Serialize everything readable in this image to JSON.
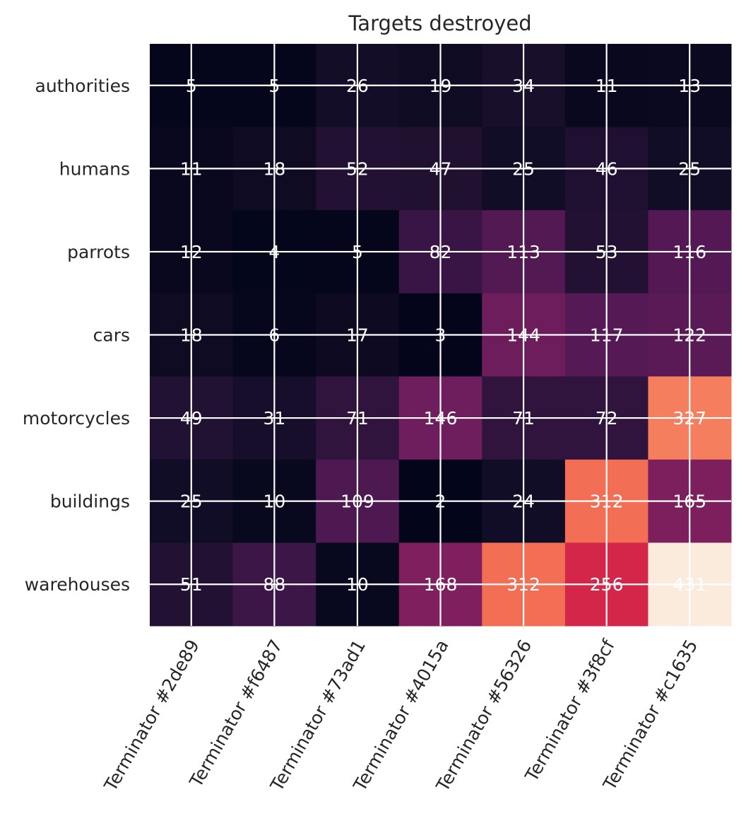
{
  "chart_data": {
    "type": "heatmap",
    "title": "Targets destroyed",
    "x_categories": [
      "Terminator #2de89",
      "Terminator #f6487",
      "Terminator #73ad1",
      "Terminator #4015a",
      "Terminator #56326",
      "Terminator #3f8cf",
      "Terminator #c1635"
    ],
    "y_categories": [
      "authorities",
      "humans",
      "parrots",
      "cars",
      "motorcycles",
      "buildings",
      "warehouses"
    ],
    "values": [
      [
        5,
        5,
        26,
        19,
        34,
        11,
        13
      ],
      [
        11,
        18,
        52,
        47,
        25,
        46,
        25
      ],
      [
        12,
        4,
        5,
        82,
        113,
        53,
        116
      ],
      [
        18,
        6,
        17,
        3,
        144,
        117,
        122
      ],
      [
        49,
        31,
        71,
        146,
        71,
        72,
        327
      ],
      [
        25,
        10,
        109,
        2,
        24,
        312,
        165
      ],
      [
        51,
        88,
        10,
        168,
        312,
        256,
        431
      ]
    ],
    "colormap": "rocket",
    "value_range": [
      2,
      431
    ],
    "grid": true,
    "grid_color": "#ffffff",
    "label_color": "#ffffff"
  }
}
